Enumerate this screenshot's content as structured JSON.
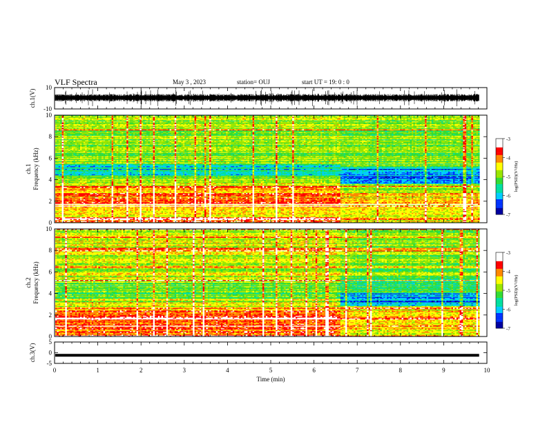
{
  "header": {
    "title": "VLF Spectra",
    "date": "May 3 , 2023",
    "station": "station= OUJ",
    "start_ut": "start UT = 19: 0 : 0"
  },
  "colors": {
    "colormap": [
      "#0000a0",
      "#0033ff",
      "#00ccff",
      "#00e0a0",
      "#33dd33",
      "#99e600",
      "#ffff00",
      "#ff8800",
      "#ff0000",
      "#ffffff"
    ]
  },
  "chart_data": [
    {
      "type": "line",
      "panel": "ch.1 waveform",
      "ylabel": "ch.1(V)",
      "yticks": [
        "10",
        "-10"
      ],
      "ylim": [
        -10,
        10
      ],
      "xlim": [
        0,
        10
      ],
      "baseline": 0.5,
      "amplitude_typical": 2.5
    },
    {
      "type": "heatmap",
      "panel": "ch.1 spectrogram",
      "ylabel": "ch.1\nFrequency (kHz)",
      "yticks": [
        "0",
        "2",
        "4",
        "6",
        "8",
        "10"
      ],
      "ylim": [
        0,
        10
      ],
      "xlim": [
        0,
        9.8
      ],
      "zlabel": "log(PSD)(V²/Hz)",
      "zticks": [
        "-3",
        "-4",
        "-5",
        "-6",
        "-7"
      ],
      "zlim": [
        -7,
        -3
      ],
      "bands_before_6_6min": [
        {
          "f": [
            0,
            0.5
          ],
          "z": -3.6
        },
        {
          "f": [
            0.5,
            1.5
          ],
          "z": -4.2
        },
        {
          "f": [
            1.5,
            3.3
          ],
          "z": -4.0
        },
        {
          "f": [
            3.3,
            4.3
          ],
          "z": -4.7
        },
        {
          "f": [
            4.3,
            5.4
          ],
          "z": -5.8
        },
        {
          "f": [
            5.4,
            10
          ],
          "z": -4.9
        }
      ],
      "bands_after_6_6min": [
        {
          "f": [
            0,
            0.5
          ],
          "z": -4.3
        },
        {
          "f": [
            0.5,
            1.5
          ],
          "z": -4.3
        },
        {
          "f": [
            1.5,
            3.0
          ],
          "z": -4.4
        },
        {
          "f": [
            3.0,
            3.6
          ],
          "z": -4.9
        },
        {
          "f": [
            3.6,
            5.2
          ],
          "z": -6.1
        },
        {
          "f": [
            5.2,
            10
          ],
          "z": -5.0
        }
      ]
    },
    {
      "type": "heatmap",
      "panel": "ch.2 spectrogram",
      "ylabel": "ch.2\nFrequency (kHz)",
      "yticks": [
        "0",
        "2",
        "4",
        "6",
        "8",
        "10"
      ],
      "ylim": [
        0,
        10
      ],
      "xlim": [
        0,
        9.8
      ],
      "zlabel": "log(PSD)(V²/Hz)",
      "zticks": [
        "-3",
        "-4",
        "-5",
        "-6",
        "-7"
      ],
      "zlim": [
        -7,
        -3
      ],
      "bands_before_6_6min": [
        {
          "f": [
            0,
            0.5
          ],
          "z": -3.6
        },
        {
          "f": [
            0.5,
            2.5
          ],
          "z": -4.0
        },
        {
          "f": [
            2.5,
            3.5
          ],
          "z": -4.6
        },
        {
          "f": [
            3.5,
            5.0
          ],
          "z": -5.1
        },
        {
          "f": [
            5.0,
            10
          ],
          "z": -4.6
        }
      ],
      "bands_after_6_6min": [
        {
          "f": [
            0,
            0.5
          ],
          "z": -4.3
        },
        {
          "f": [
            0.5,
            2.8
          ],
          "z": -4.5
        },
        {
          "f": [
            2.8,
            4.0
          ],
          "z": -6.1
        },
        {
          "f": [
            4.0,
            5.5
          ],
          "z": -5.4
        },
        {
          "f": [
            5.5,
            10
          ],
          "z": -4.9
        }
      ]
    },
    {
      "type": "line",
      "panel": "ch.3 waveform",
      "ylabel": "ch.3(V)",
      "yticks": [
        "5",
        "0",
        "-5"
      ],
      "ylim": [
        -5,
        5
      ],
      "xlim": [
        0,
        10
      ],
      "constant_value": -1.2,
      "xlabel": "Time (min)",
      "xticks": [
        "0",
        "1",
        "2",
        "3",
        "4",
        "5",
        "6",
        "7",
        "8",
        "9",
        "10"
      ]
    }
  ]
}
